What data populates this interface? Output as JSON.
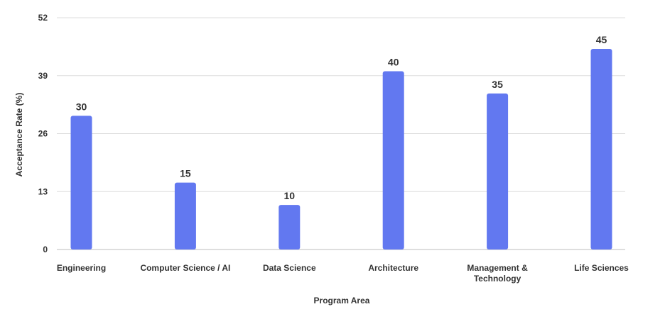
{
  "chart_data": {
    "type": "bar",
    "title": "",
    "xlabel": "Program Area",
    "ylabel": "Acceptance Rate (%)",
    "ylim": [
      0,
      52
    ],
    "yticks": [
      0,
      13,
      26,
      39,
      52
    ],
    "grid": true,
    "legend": "none",
    "bar_color": "#6278f0",
    "categories": [
      [
        "Engineering"
      ],
      [
        "Computer Science / AI"
      ],
      [
        "Data Science"
      ],
      [
        "Architecture"
      ],
      [
        "Management &",
        "Technology"
      ],
      [
        "Life Sciences"
      ]
    ],
    "values": [
      30,
      15,
      10,
      40,
      35,
      45
    ]
  }
}
